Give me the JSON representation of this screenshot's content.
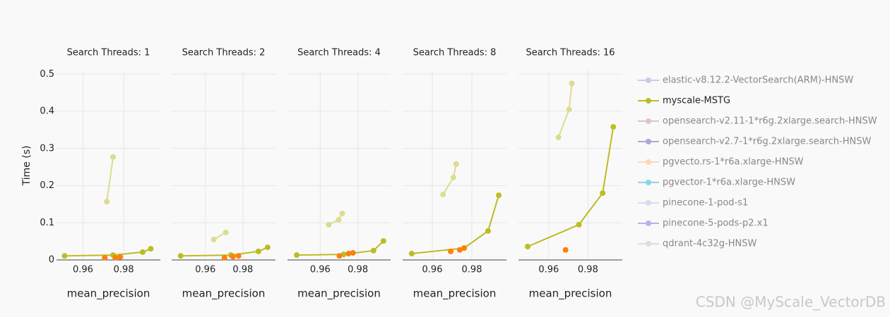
{
  "chart_data": [
    {
      "type": "line",
      "title": "Search Threads: 1",
      "x_label": "mean_precision",
      "y_label": "Time (s)",
      "xlim": [
        0.947,
        0.998
      ],
      "xticks": [
        0.96,
        0.98
      ],
      "ylim": [
        0,
        0.51
      ],
      "yticks": [
        0,
        0.1,
        0.2,
        0.3,
        0.4,
        0.5
      ],
      "grid": true,
      "series": [
        {
          "name": "myscale-MSTG",
          "color": "#bcbd22",
          "mode": "lines+markers",
          "x": [
            0.951,
            0.9748,
            0.9893,
            0.9933
          ],
          "values": [
            0.011,
            0.013,
            0.021,
            0.03
          ]
        },
        {
          "color": "#dcdc90",
          "mode": "lines+markers",
          "x": [
            0.9717,
            0.9748
          ],
          "values": [
            0.157,
            0.277
          ]
        },
        {
          "color": "#ff7f0e",
          "mode": "markers",
          "x": [
            0.9707,
            0.9759,
            0.9783
          ],
          "values": [
            0.006,
            0.006,
            0.008
          ]
        }
      ]
    },
    {
      "type": "line",
      "title": "Search Threads: 2",
      "x_label": "mean_precision",
      "xlim": [
        0.942,
        0.9974
      ],
      "xticks": [
        0.96,
        0.98
      ],
      "ylim": [
        0,
        0.51
      ],
      "yticks": [
        0,
        0.1,
        0.2,
        0.3,
        0.4,
        0.5
      ],
      "grid": true,
      "series": [
        {
          "name": "myscale-MSTG",
          "color": "#bcbd22",
          "mode": "lines+markers",
          "x": [
            0.9468,
            0.9736,
            0.9883,
            0.9932
          ],
          "values": [
            0.011,
            0.013,
            0.023,
            0.034
          ]
        },
        {
          "color": "#dcdc90",
          "mode": "lines+markers",
          "x": [
            0.9645,
            0.9709
          ],
          "values": [
            0.055,
            0.074
          ]
        },
        {
          "color": "#ff7f0e",
          "mode": "markers",
          "x": [
            0.9702,
            0.9747,
            0.9777
          ],
          "values": [
            0.006,
            0.009,
            0.011
          ]
        }
      ]
    },
    {
      "type": "line",
      "title": "Search Threads: 4",
      "x_label": "mean_precision",
      "xlim": [
        0.9426,
        0.9974
      ],
      "xticks": [
        0.96,
        0.98
      ],
      "ylim": [
        0,
        0.51
      ],
      "yticks": [
        0,
        0.1,
        0.2,
        0.3,
        0.4,
        0.5
      ],
      "grid": true,
      "series": [
        {
          "name": "myscale-MSTG",
          "color": "#bcbd22",
          "mode": "lines+markers",
          "x": [
            0.9475,
            0.9725,
            0.9883,
            0.9936
          ],
          "values": [
            0.013,
            0.015,
            0.025,
            0.051
          ]
        },
        {
          "color": "#dcdc90",
          "mode": "lines+markers",
          "x": [
            0.9645,
            0.9698,
            0.9717
          ],
          "values": [
            0.095,
            0.108,
            0.125
          ]
        },
        {
          "color": "#ff7f0e",
          "mode": "markers",
          "x": [
            0.9702,
            0.9751,
            0.9774
          ],
          "values": [
            0.011,
            0.017,
            0.019
          ]
        }
      ]
    },
    {
      "type": "line",
      "title": "Search Threads: 8",
      "x_label": "mean_precision",
      "xlim": [
        0.945,
        0.9975
      ],
      "xticks": [
        0.96,
        0.98
      ],
      "ylim": [
        0,
        0.51
      ],
      "yticks": [
        0,
        0.1,
        0.2,
        0.3,
        0.4,
        0.5
      ],
      "grid": true,
      "series": [
        {
          "name": "myscale-MSTG",
          "color": "#bcbd22",
          "mode": "lines+markers",
          "x": [
            0.9496,
            0.9761,
            0.9882,
            0.9936
          ],
          "values": [
            0.017,
            0.032,
            0.078,
            0.174
          ]
        },
        {
          "color": "#dcdc90",
          "mode": "lines+markers",
          "x": [
            0.9654,
            0.9707,
            0.9721
          ],
          "values": [
            0.176,
            0.222,
            0.258
          ]
        },
        {
          "color": "#ff7f0e",
          "mode": "markers",
          "x": [
            0.9693,
            0.9739,
            0.9761
          ],
          "values": [
            0.023,
            0.027,
            0.032
          ]
        }
      ]
    },
    {
      "type": "line",
      "title": "Search Threads: 16",
      "x_label": "mean_precision",
      "xlim": [
        0.9446,
        0.9975
      ],
      "xticks": [
        0.96,
        0.98
      ],
      "ylim": [
        0,
        0.51
      ],
      "yticks": [
        0,
        0.1,
        0.2,
        0.3,
        0.4,
        0.5
      ],
      "grid": true,
      "series": [
        {
          "name": "myscale-MSTG",
          "color": "#bcbd22",
          "mode": "lines+markers",
          "x": [
            0.9493,
            0.9754,
            0.9875,
            0.9929
          ],
          "values": [
            0.036,
            0.095,
            0.18,
            0.358
          ]
        },
        {
          "color": "#dcdc90",
          "mode": "lines+markers",
          "x": [
            0.965,
            0.9704,
            0.9718
          ],
          "values": [
            0.33,
            0.405,
            0.475
          ]
        },
        {
          "color": "#ff7f0e",
          "mode": "markers",
          "x": [
            0.9686
          ],
          "values": [
            0.027
          ]
        }
      ]
    }
  ],
  "legend": [
    {
      "name": "elastic-v8.12.2-VectorSearch(ARM)-HNSW",
      "color": "#c7cbe8",
      "active": false
    },
    {
      "name": "myscale-MSTG",
      "color": "#bcbd22",
      "active": true
    },
    {
      "name": "opensearch-v2.11-1*r6g.2xlarge.search-HNSW",
      "color": "#dfc3c3",
      "active": false
    },
    {
      "name": "opensearch-v2.7-1*r6g.2xlarge.search-HNSW",
      "color": "#a9a9d4",
      "active": false
    },
    {
      "name": "pgvecto.rs-1*r6a.xlarge-HNSW",
      "color": "#fdd8b5",
      "active": false
    },
    {
      "name": "pgvector-1*r6a.xlarge-HNSW",
      "color": "#86d8e2",
      "active": false
    },
    {
      "name": "pinecone-1-pod-s1",
      "color": "#d3dcf0",
      "active": false
    },
    {
      "name": "pinecone-5-pods-p2.x1",
      "color": "#b5b5e6",
      "active": false
    },
    {
      "name": "qdrant-4c32g-HNSW",
      "color": "#dddddd",
      "active": false
    }
  ],
  "watermark": "CSDN @MyScale_VectorDB"
}
